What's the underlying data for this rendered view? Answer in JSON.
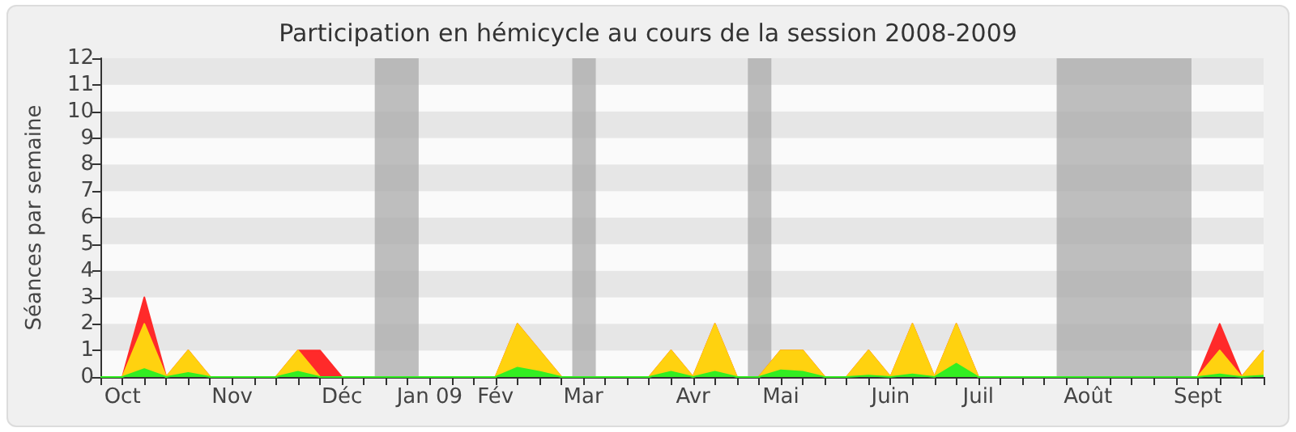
{
  "chart_data": {
    "type": "area",
    "title": "Participation en hémicycle au cours de la session 2008-2009",
    "ylabel": "Séances par semaine",
    "x": [
      "2008-09-29",
      "2008-10-06",
      "2008-10-13",
      "2008-10-20",
      "2008-10-27",
      "2008-11-03",
      "2008-11-10",
      "2008-11-17",
      "2008-11-24",
      "2008-12-01",
      "2008-12-08",
      "2008-12-15",
      "2008-12-22",
      "2008-12-29",
      "2009-01-05",
      "2009-01-12",
      "2009-01-19",
      "2009-01-26",
      "2009-02-02",
      "2009-02-09",
      "2009-02-16",
      "2009-02-23",
      "2009-03-02",
      "2009-03-09",
      "2009-03-16",
      "2009-03-23",
      "2009-03-30",
      "2009-04-06",
      "2009-04-13",
      "2009-04-20",
      "2009-04-27",
      "2009-05-04",
      "2009-05-11",
      "2009-05-18",
      "2009-05-25",
      "2009-06-01",
      "2009-06-08",
      "2009-06-15",
      "2009-06-22",
      "2009-06-29",
      "2009-07-06",
      "2009-07-13",
      "2009-07-20",
      "2009-07-27",
      "2009-08-03",
      "2009-08-10",
      "2009-08-17",
      "2009-08-24",
      "2009-08-31",
      "2009-09-07",
      "2009-09-14",
      "2009-09-21",
      "2009-09-28",
      "2009-10-05"
    ],
    "series": [
      {
        "color": "#ff2a2a",
        "values": [
          0,
          0,
          3,
          0,
          1,
          0,
          0,
          0,
          0,
          1,
          1,
          0,
          0,
          0,
          0,
          0,
          0,
          0,
          0,
          2,
          1,
          0,
          0,
          0,
          0,
          0,
          1,
          0,
          2,
          0,
          0,
          1,
          1,
          0,
          0,
          1,
          0,
          2,
          0,
          2,
          0,
          0,
          0,
          0,
          0,
          0,
          0,
          0,
          0,
          0,
          0,
          2,
          0,
          1
        ]
      },
      {
        "color": "#ffd20f",
        "values": [
          0,
          0,
          2,
          0,
          1,
          0,
          0,
          0,
          0,
          1,
          0,
          0,
          0,
          0,
          0,
          0,
          0,
          0,
          0,
          2,
          1,
          0,
          0,
          0,
          0,
          0,
          1,
          0,
          2,
          0,
          0,
          1,
          1,
          0,
          0,
          1,
          0,
          2,
          0,
          2,
          0,
          0,
          0,
          0,
          0,
          0,
          0,
          0,
          0,
          0,
          0,
          1,
          0,
          1
        ]
      },
      {
        "color": "#33ee22",
        "values": [
          0,
          0,
          0.3,
          0,
          0.15,
          0,
          0,
          0,
          0,
          0.2,
          0,
          0,
          0,
          0,
          0,
          0,
          0,
          0,
          0,
          0.35,
          0.2,
          0,
          0,
          0,
          0,
          0,
          0.2,
          0,
          0.2,
          0,
          0,
          0.25,
          0.2,
          0,
          0,
          0.05,
          0,
          0.1,
          0,
          0.5,
          0,
          0,
          0,
          0,
          0,
          0,
          0,
          0,
          0,
          0,
          0,
          0.1,
          0,
          0.05
        ]
      }
    ],
    "xlim": [
      "2008-09-29",
      "2009-10-05"
    ],
    "xticks": [
      {
        "value": "2008-09-29",
        "label": null
      },
      {
        "value": "2008-10-06",
        "label": "Oct"
      },
      {
        "value": "2008-10-13",
        "label": null
      },
      {
        "value": "2008-10-20",
        "label": null
      },
      {
        "value": "2008-10-27",
        "label": null
      },
      {
        "value": "2008-11-03",
        "label": null
      },
      {
        "value": "2008-11-10",
        "label": "Nov"
      },
      {
        "value": "2008-11-17",
        "label": null
      },
      {
        "value": "2008-11-24",
        "label": null
      },
      {
        "value": "2008-12-01",
        "label": null
      },
      {
        "value": "2008-12-08",
        "label": null
      },
      {
        "value": "2008-12-15",
        "label": "Déc"
      },
      {
        "value": "2008-12-22",
        "label": null
      },
      {
        "value": "2008-12-29",
        "label": null
      },
      {
        "value": "2009-01-05",
        "label": null
      },
      {
        "value": "2009-01-12",
        "label": "Jan 09"
      },
      {
        "value": "2009-01-19",
        "label": null
      },
      {
        "value": "2009-01-26",
        "label": null
      },
      {
        "value": "2009-02-02",
        "label": "Fév"
      },
      {
        "value": "2009-02-09",
        "label": null
      },
      {
        "value": "2009-02-16",
        "label": null
      },
      {
        "value": "2009-02-23",
        "label": null
      },
      {
        "value": "2009-03-02",
        "label": "Mar"
      },
      {
        "value": "2009-03-09",
        "label": null
      },
      {
        "value": "2009-03-16",
        "label": null
      },
      {
        "value": "2009-03-23",
        "label": null
      },
      {
        "value": "2009-03-30",
        "label": null
      },
      {
        "value": "2009-04-06",
        "label": "Avr"
      },
      {
        "value": "2009-04-13",
        "label": null
      },
      {
        "value": "2009-04-20",
        "label": null
      },
      {
        "value": "2009-04-27",
        "label": null
      },
      {
        "value": "2009-05-04",
        "label": "Mai"
      },
      {
        "value": "2009-05-11",
        "label": null
      },
      {
        "value": "2009-05-18",
        "label": null
      },
      {
        "value": "2009-05-25",
        "label": null
      },
      {
        "value": "2009-06-01",
        "label": null
      },
      {
        "value": "2009-06-08",
        "label": "Juin"
      },
      {
        "value": "2009-06-15",
        "label": null
      },
      {
        "value": "2009-06-22",
        "label": null
      },
      {
        "value": "2009-06-29",
        "label": null
      },
      {
        "value": "2009-07-06",
        "label": "Juil"
      },
      {
        "value": "2009-07-13",
        "label": null
      },
      {
        "value": "2009-07-20",
        "label": null
      },
      {
        "value": "2009-07-27",
        "label": null
      },
      {
        "value": "2009-08-03",
        "label": null
      },
      {
        "value": "2009-08-10",
        "label": "Août"
      },
      {
        "value": "2009-08-17",
        "label": null
      },
      {
        "value": "2009-08-24",
        "label": null
      },
      {
        "value": "2009-08-31",
        "label": null
      },
      {
        "value": "2009-09-07",
        "label": null
      },
      {
        "value": "2009-09-14",
        "label": "Sept"
      },
      {
        "value": "2009-09-21",
        "label": null
      },
      {
        "value": "2009-09-28",
        "label": null
      },
      {
        "value": "2009-10-05",
        "label": null
      }
    ],
    "ylim": [
      0,
      12
    ],
    "yticks": [
      0,
      1,
      2,
      3,
      4,
      5,
      6,
      7,
      8,
      9,
      10,
      11,
      12
    ],
    "bands": [
      {
        "axis": "x",
        "from": "2008-12-25T12:00",
        "to": "2009-01-08T12:00",
        "color": "#aaaaaa"
      },
      {
        "axis": "x",
        "from": "2009-02-26T12:00",
        "to": "2009-03-06",
        "color": "#aaaaaa"
      },
      {
        "axis": "x",
        "from": "2009-04-23T12:00",
        "to": "2009-05-01",
        "color": "#aaaaaa"
      },
      {
        "axis": "x",
        "from": "2009-07-31",
        "to": "2009-09-12",
        "color": "#aaaaaa"
      }
    ],
    "legend": false,
    "marker": "none",
    "line_style": "solid"
  }
}
